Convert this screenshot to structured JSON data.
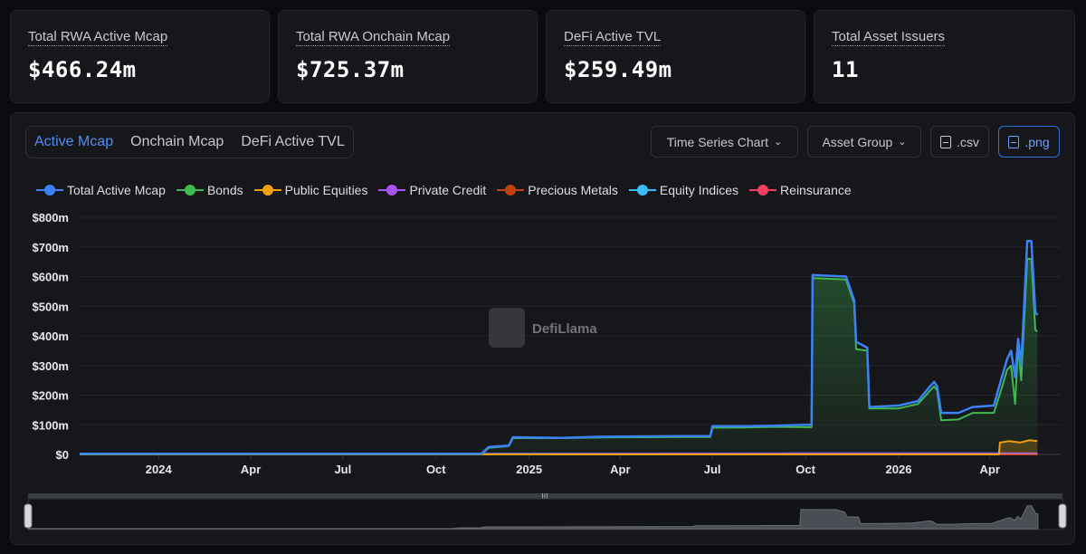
{
  "stats": [
    {
      "label": "Total RWA Active Mcap",
      "value": "$466.24m"
    },
    {
      "label": "Total RWA Onchain Mcap",
      "value": "$725.37m"
    },
    {
      "label": "DeFi Active TVL",
      "value": "$259.49m"
    },
    {
      "label": "Total Asset Issuers",
      "value": "11"
    }
  ],
  "tabs": [
    {
      "label": "Active Mcap",
      "active": true
    },
    {
      "label": "Onchain Mcap",
      "active": false
    },
    {
      "label": "DeFi Active TVL",
      "active": false
    }
  ],
  "controls": {
    "chart_type": "Time Series Chart",
    "group_by": "Asset Group",
    "csv": ".csv",
    "png": ".png"
  },
  "watermark": "DefiLlama",
  "colors": {
    "accent": "#4f8cf7",
    "background": "#0b0c0f",
    "panel": "#16171b"
  },
  "chart_data": {
    "type": "area",
    "x_range": [
      "2023-10-15",
      "2026-06-10"
    ],
    "y_range": [
      0,
      800
    ],
    "y_unit": "m",
    "y_ticks": [
      "$0",
      "$100m",
      "$200m",
      "$300m",
      "$400m",
      "$500m",
      "$600m",
      "$700m",
      "$800m"
    ],
    "x_ticks": [
      "2024",
      "Apr",
      "Jul",
      "Oct",
      "2025",
      "Apr",
      "Jul",
      "Oct",
      "2026",
      "Apr"
    ],
    "legend_position": "top-left",
    "grid": true,
    "series": [
      {
        "name": "Total Active Mcap",
        "color": "#3b82f6",
        "points": [
          [
            "2023-10-15",
            2
          ],
          [
            "2024-11-15",
            2
          ],
          [
            "2024-11-22",
            25
          ],
          [
            "2024-12-12",
            30
          ],
          [
            "2024-12-16",
            58
          ],
          [
            "2025-02-01",
            56
          ],
          [
            "2025-03-15",
            60
          ],
          [
            "2025-06-01",
            62
          ],
          [
            "2025-06-29",
            62
          ],
          [
            "2025-07-01",
            95
          ],
          [
            "2025-08-01",
            95
          ],
          [
            "2025-09-01",
            97
          ],
          [
            "2025-10-01",
            100
          ],
          [
            "2025-10-07",
            100
          ],
          [
            "2025-10-08",
            605
          ],
          [
            "2025-11-10",
            600
          ],
          [
            "2025-11-18",
            520
          ],
          [
            "2025-11-20",
            380
          ],
          [
            "2025-12-01",
            360
          ],
          [
            "2025-12-03",
            160
          ],
          [
            "2026-01-01",
            165
          ],
          [
            "2026-01-20",
            180
          ],
          [
            "2026-02-01",
            230
          ],
          [
            "2026-02-05",
            245
          ],
          [
            "2026-02-08",
            230
          ],
          [
            "2026-02-12",
            140
          ],
          [
            "2026-03-01",
            140
          ],
          [
            "2026-03-15",
            160
          ],
          [
            "2026-04-05",
            165
          ],
          [
            "2026-04-12",
            250
          ],
          [
            "2026-04-18",
            320
          ],
          [
            "2026-04-22",
            350
          ],
          [
            "2026-04-26",
            260
          ],
          [
            "2026-04-29",
            390
          ],
          [
            "2026-05-02",
            300
          ],
          [
            "2026-05-08",
            720
          ],
          [
            "2026-05-12",
            720
          ],
          [
            "2026-05-16",
            480
          ],
          [
            "2026-05-18",
            470
          ]
        ]
      },
      {
        "name": "Bonds",
        "color": "#3fb950",
        "points": [
          [
            "2023-10-15",
            1
          ],
          [
            "2024-11-15",
            1
          ],
          [
            "2024-11-22",
            22
          ],
          [
            "2024-12-12",
            28
          ],
          [
            "2024-12-16",
            55
          ],
          [
            "2025-02-01",
            55
          ],
          [
            "2025-03-15",
            57
          ],
          [
            "2025-06-01",
            59
          ],
          [
            "2025-06-29",
            59
          ],
          [
            "2025-07-01",
            90
          ],
          [
            "2025-08-01",
            91
          ],
          [
            "2025-09-01",
            93
          ],
          [
            "2025-10-01",
            92
          ],
          [
            "2025-10-07",
            92
          ],
          [
            "2025-10-08",
            595
          ],
          [
            "2025-11-10",
            590
          ],
          [
            "2025-11-18",
            510
          ],
          [
            "2025-11-20",
            355
          ],
          [
            "2025-12-01",
            350
          ],
          [
            "2025-12-03",
            155
          ],
          [
            "2026-01-01",
            155
          ],
          [
            "2026-01-20",
            170
          ],
          [
            "2026-02-01",
            215
          ],
          [
            "2026-02-05",
            230
          ],
          [
            "2026-02-08",
            215
          ],
          [
            "2026-02-12",
            115
          ],
          [
            "2026-03-01",
            118
          ],
          [
            "2026-03-15",
            140
          ],
          [
            "2026-04-05",
            140
          ],
          [
            "2026-04-12",
            215
          ],
          [
            "2026-04-18",
            285
          ],
          [
            "2026-04-22",
            300
          ],
          [
            "2026-04-26",
            170
          ],
          [
            "2026-04-29",
            370
          ],
          [
            "2026-05-02",
            250
          ],
          [
            "2026-05-08",
            660
          ],
          [
            "2026-05-12",
            660
          ],
          [
            "2026-05-16",
            420
          ],
          [
            "2026-05-18",
            415
          ]
        ]
      },
      {
        "name": "Public Equities",
        "color": "#f59e0b",
        "points": [
          [
            "2023-10-15",
            0
          ],
          [
            "2026-04-10",
            0
          ],
          [
            "2026-04-11",
            40
          ],
          [
            "2026-04-20",
            45
          ],
          [
            "2026-05-01",
            40
          ],
          [
            "2026-05-10",
            48
          ],
          [
            "2026-05-18",
            45
          ]
        ]
      },
      {
        "name": "Private Credit",
        "color": "#a855f7",
        "points": [
          [
            "2023-10-15",
            0
          ],
          [
            "2025-03-01",
            2
          ],
          [
            "2025-11-15",
            4
          ],
          [
            "2026-05-18",
            4
          ]
        ]
      },
      {
        "name": "Precious Metals",
        "color": "#c2410c",
        "points": [
          [
            "2023-10-15",
            0
          ],
          [
            "2026-05-18",
            0
          ]
        ]
      },
      {
        "name": "Equity Indices",
        "color": "#38bdf8",
        "points": [
          [
            "2023-10-15",
            2
          ],
          [
            "2026-05-18",
            2
          ]
        ]
      },
      {
        "name": "Reinsurance",
        "color": "#f43f5e",
        "points": [
          [
            "2023-10-15",
            0
          ],
          [
            "2025-11-18",
            0
          ],
          [
            "2025-11-20",
            3
          ],
          [
            "2026-05-18",
            3
          ]
        ]
      }
    ]
  }
}
